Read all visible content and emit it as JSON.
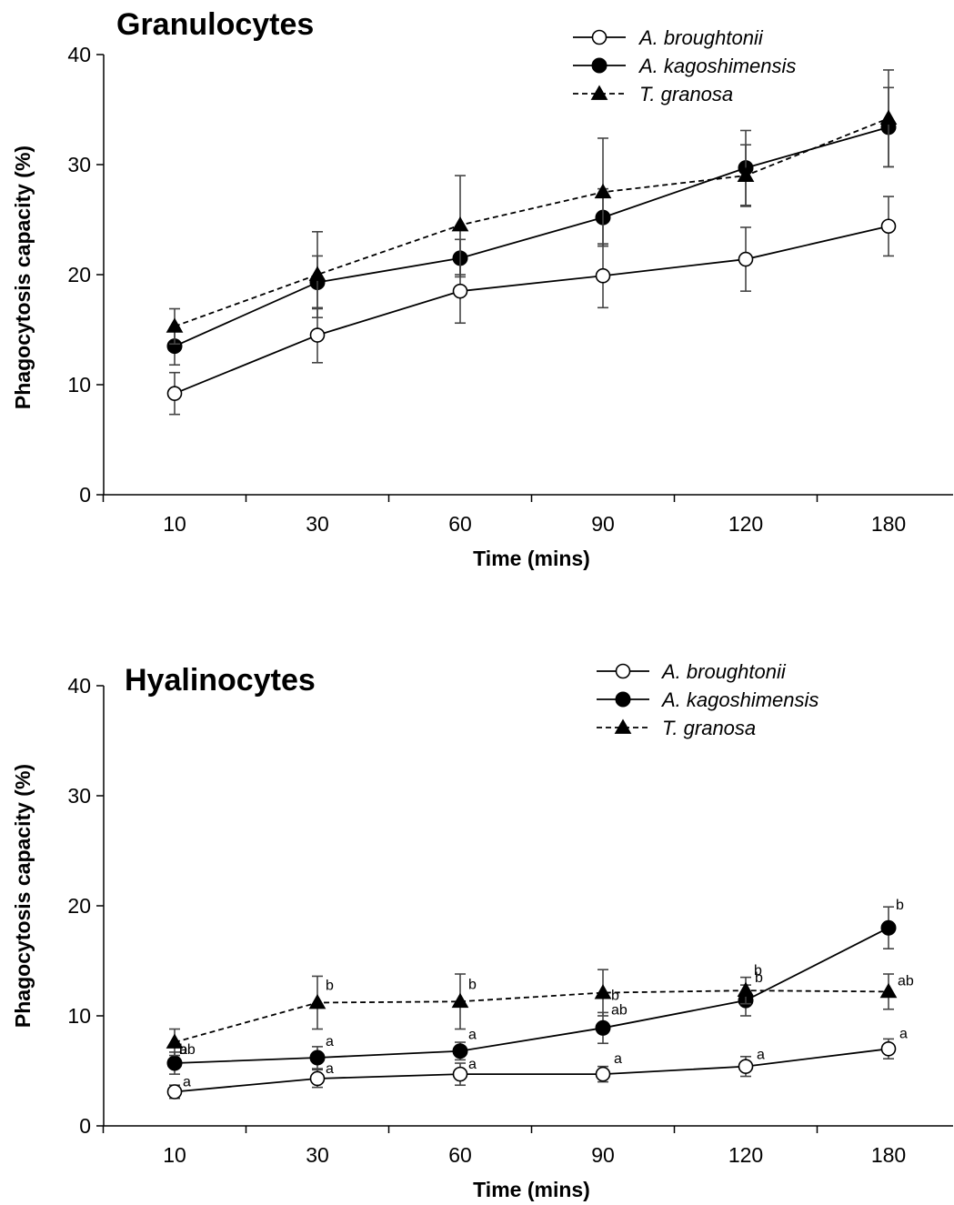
{
  "chart_data": [
    {
      "type": "line",
      "title": "Granulocytes",
      "xlabel": "Time (mins)",
      "ylabel": "Phagocytosis capacity (%)",
      "categories": [
        "10",
        "30",
        "60",
        "90",
        "120",
        "180"
      ],
      "ylim": [
        0,
        40
      ],
      "yticks": [
        0,
        10,
        20,
        30,
        40
      ],
      "grid": false,
      "legend_position": "top-right",
      "series": [
        {
          "name": "A. broughtonii",
          "marker": "open-circle",
          "line": "solid",
          "values": [
            9.2,
            14.5,
            18.5,
            19.9,
            21.4,
            24.4
          ],
          "errors": [
            1.9,
            2.5,
            2.9,
            2.9,
            2.9,
            2.7
          ]
        },
        {
          "name": "A. kagoshimensis",
          "marker": "filled-circle",
          "line": "solid",
          "values": [
            13.5,
            19.3,
            21.5,
            25.2,
            29.7,
            33.4
          ],
          "errors": [
            1.7,
            2.4,
            1.7,
            2.6,
            3.4,
            3.6
          ]
        },
        {
          "name": "T. granosa",
          "marker": "filled-triangle",
          "line": "dashed",
          "values": [
            15.3,
            20.0,
            24.5,
            27.5,
            29.0,
            34.2
          ],
          "errors": [
            1.6,
            3.9,
            4.5,
            4.9,
            2.8,
            4.4
          ]
        }
      ]
    },
    {
      "type": "line",
      "title": "Hyalinocytes",
      "xlabel": "Time (mins)",
      "ylabel": "Phagocytosis capacity (%)",
      "categories": [
        "10",
        "30",
        "60",
        "90",
        "120",
        "180"
      ],
      "ylim": [
        0,
        40
      ],
      "yticks": [
        0,
        10,
        20,
        30,
        40
      ],
      "grid": false,
      "legend_position": "top-right",
      "series": [
        {
          "name": "A. broughtonii",
          "marker": "open-circle",
          "line": "solid",
          "values": [
            3.1,
            4.3,
            4.7,
            4.7,
            5.4,
            7.0
          ],
          "errors": [
            0.6,
            0.8,
            1.0,
            0.7,
            0.9,
            0.9
          ],
          "labels": [
            "a",
            "a",
            "a",
            "a",
            "a",
            "a"
          ]
        },
        {
          "name": "A. kagoshimensis",
          "marker": "filled-circle",
          "line": "solid",
          "values": [
            5.7,
            6.2,
            6.8,
            8.9,
            11.4,
            18.0
          ],
          "errors": [
            1.0,
            1.0,
            0.8,
            1.4,
            1.4,
            1.9
          ],
          "labels": [
            "ab",
            "a",
            "a",
            "ab",
            "b",
            "b"
          ]
        },
        {
          "name": "T. granosa",
          "marker": "filled-triangle",
          "line": "dashed",
          "values": [
            7.6,
            11.2,
            11.3,
            12.1,
            12.3,
            12.2
          ],
          "errors": [
            1.2,
            2.4,
            2.5,
            2.1,
            1.2,
            1.6
          ],
          "labels": [
            "b",
            "b",
            "b",
            "b",
            "b",
            "ab"
          ]
        }
      ]
    }
  ]
}
